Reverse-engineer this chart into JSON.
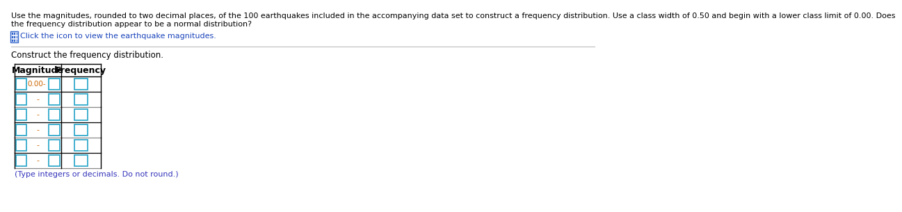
{
  "title_line1": "Use the magnitudes, rounded to two decimal places, of the 100 earthquakes included in the accompanying data set to construct a frequency distribution. Use a class width of 0.50 and begin with a lower class limit of 0.00. Does",
  "title_line2": "the frequency distribution appear to be a normal distribution?",
  "icon_text": "Click the icon to view the earthquake magnitudes.",
  "subtitle": "Construct the frequency distribution.",
  "col1_header": "Magnitude",
  "col2_header": "Frequency",
  "first_row_label": "0.00-",
  "num_rows": 6,
  "footer_text": "(Type integers or decimals. Do not round.)",
  "bg_color": "#ffffff",
  "title_color": "#000000",
  "icon_color": "#1a44bb",
  "icon_bg": "#3366cc",
  "subtitle_color": "#000000",
  "header_color": "#000000",
  "row_label_color": "#cc6600",
  "footer_color": "#3333bb",
  "input_box_color": "#33aacc",
  "line_color_dark": "#000000",
  "line_color_gray": "#888888",
  "sep_line_color": "#bbbbbb",
  "title_fontsize": 8.0,
  "icon_fontsize": 8.0,
  "subtitle_fontsize": 8.5,
  "header_fontsize": 9.0,
  "row_fontsize": 8.0,
  "footer_fontsize": 8.0
}
